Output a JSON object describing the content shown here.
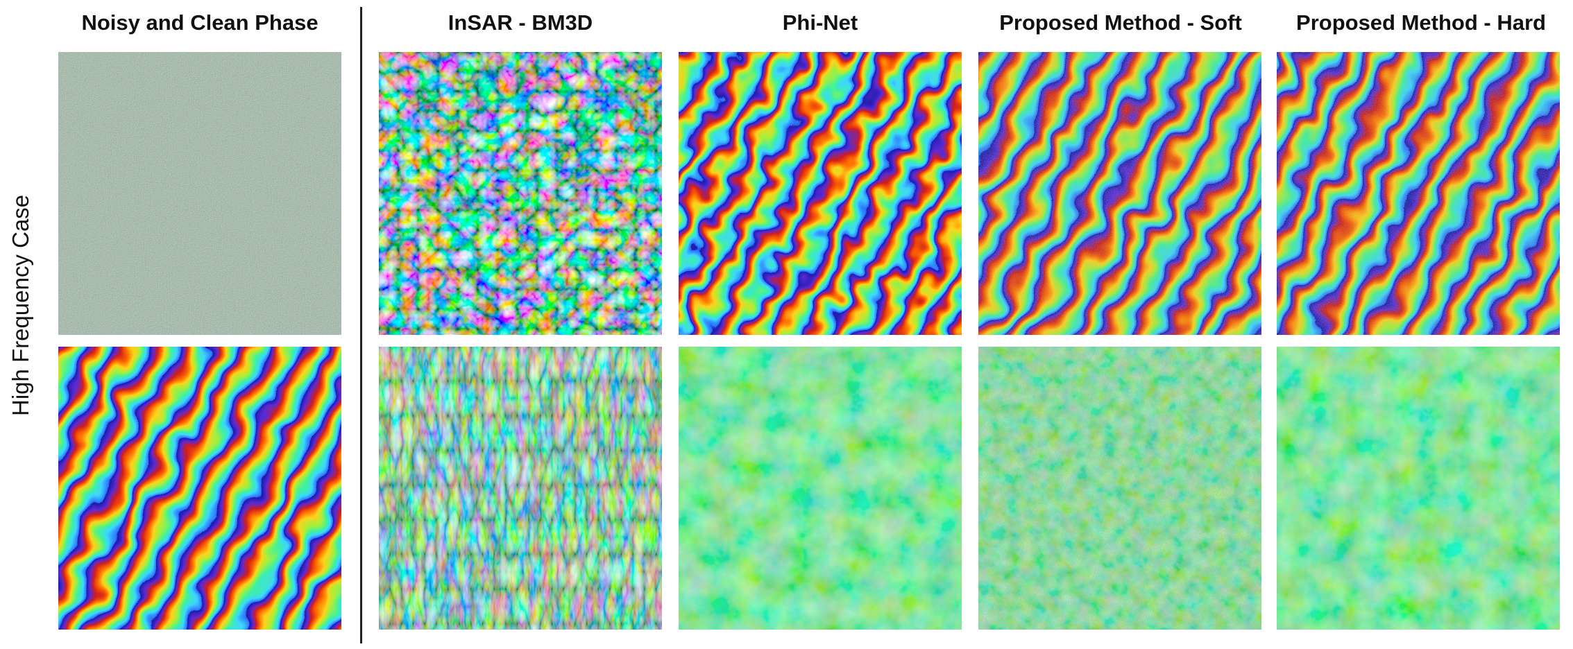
{
  "figure": {
    "columns": [
      "Noisy and Clean Phase",
      "InSAR - BM3D",
      "Phi-Net",
      "Proposed Method - Soft",
      "Proposed Method - Hard"
    ],
    "row_label": "High Frequency Case",
    "colormap": [
      "#1a1aa8",
      "#5a2bd6",
      "#d11d1d",
      "#ff6a00",
      "#ffd21a",
      "#a6ef3b",
      "#3ef2a0",
      "#3cd6ff",
      "#2b6bff"
    ]
  }
}
